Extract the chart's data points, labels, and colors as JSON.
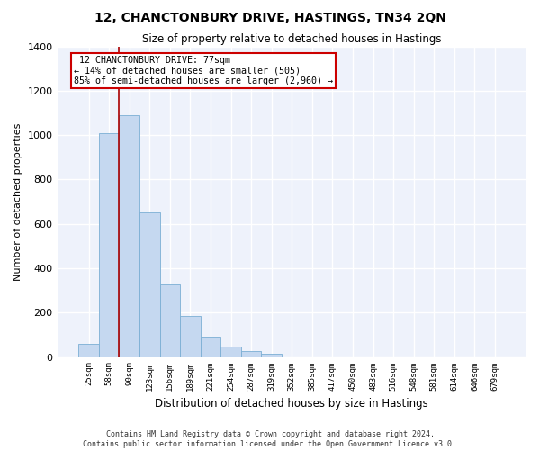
{
  "title": "12, CHANCTONBURY DRIVE, HASTINGS, TN34 2QN",
  "subtitle": "Size of property relative to detached houses in Hastings",
  "xlabel": "Distribution of detached houses by size in Hastings",
  "ylabel": "Number of detached properties",
  "bar_labels": [
    "25sqm",
    "58sqm",
    "90sqm",
    "123sqm",
    "156sqm",
    "189sqm",
    "221sqm",
    "254sqm",
    "287sqm",
    "319sqm",
    "352sqm",
    "385sqm",
    "417sqm",
    "450sqm",
    "483sqm",
    "516sqm",
    "548sqm",
    "581sqm",
    "614sqm",
    "646sqm",
    "679sqm"
  ],
  "bar_values": [
    60,
    1010,
    1090,
    650,
    325,
    185,
    90,
    45,
    25,
    15,
    0,
    0,
    0,
    0,
    0,
    0,
    0,
    0,
    0,
    0,
    0
  ],
  "bar_color": "#c5d8f0",
  "bar_edge_color": "#7bafd4",
  "vline_x": 2.0,
  "marker_label": "12 CHANCTONBURY DRIVE: 77sqm",
  "pct_smaller": "14% of detached houses are smaller (505)",
  "pct_larger": "85% of semi-detached houses are larger (2,960)",
  "ylim": [
    0,
    1400
  ],
  "yticks": [
    0,
    200,
    400,
    600,
    800,
    1000,
    1200,
    1400
  ],
  "annotation_box_color": "#cc0000",
  "vline_color": "#aa0000",
  "bg_color": "#eef2fb",
  "grid_color": "#ffffff",
  "footer_line1": "Contains HM Land Registry data © Crown copyright and database right 2024.",
  "footer_line2": "Contains public sector information licensed under the Open Government Licence v3.0."
}
